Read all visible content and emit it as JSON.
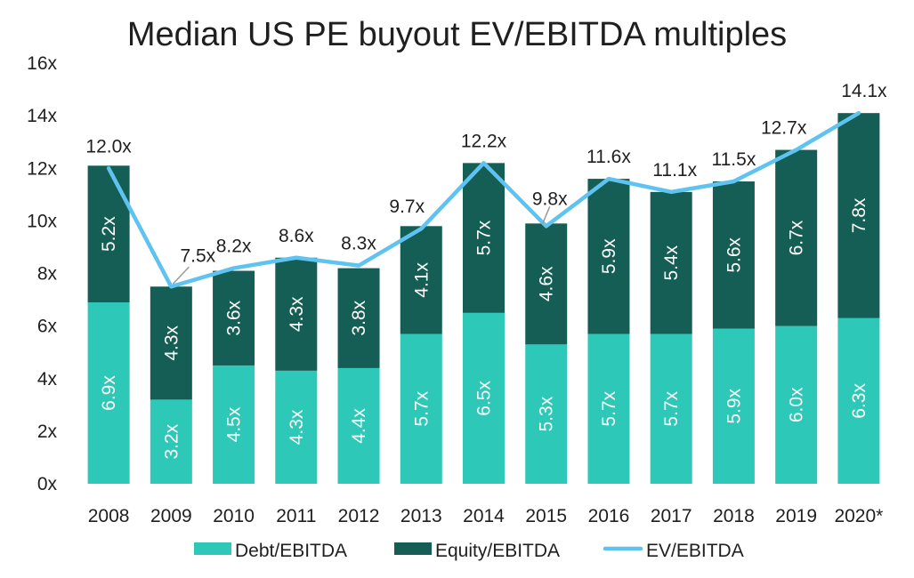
{
  "chart_data": {
    "type": "bar",
    "stacked": true,
    "title": "Median US PE buyout EV/EBITDA multiples",
    "categories": [
      "2008",
      "2009",
      "2010",
      "2011",
      "2012",
      "2013",
      "2014",
      "2015",
      "2016",
      "2017",
      "2018",
      "2019",
      "2020*"
    ],
    "series": [
      {
        "name": "Debt/EBITDA",
        "kind": "bar",
        "color": "#2ec8b8",
        "values": [
          6.9,
          3.2,
          4.5,
          4.3,
          4.4,
          5.7,
          6.5,
          5.3,
          5.7,
          5.7,
          5.9,
          6.0,
          6.3
        ],
        "labels": [
          "6.9x",
          "3.2x",
          "4.5x",
          "4.3x",
          "4.4x",
          "5.7x",
          "6.5x",
          "5.3x",
          "5.7x",
          "5.7x",
          "5.9x",
          "6.0x",
          "6.3x"
        ]
      },
      {
        "name": "Equity/EBITDA",
        "kind": "bar",
        "color": "#155e55",
        "values": [
          5.2,
          4.3,
          3.6,
          4.3,
          3.8,
          4.1,
          5.7,
          4.6,
          5.9,
          5.4,
          5.6,
          6.7,
          7.8
        ],
        "labels": [
          "5.2x",
          "4.3x",
          "3.6x",
          "4.3x",
          "3.8x",
          "4.1x",
          "5.7x",
          "4.6x",
          "5.9x",
          "5.4x",
          "5.6x",
          "6.7x",
          "7.8x"
        ]
      },
      {
        "name": "EV/EBITDA",
        "kind": "line",
        "color": "#5ec3f0",
        "values": [
          12.0,
          7.5,
          8.2,
          8.6,
          8.3,
          9.7,
          12.2,
          9.8,
          11.6,
          11.1,
          11.5,
          12.7,
          14.1
        ],
        "labels": [
          "12.0x",
          "7.5x",
          "8.2x",
          "8.6x",
          "8.3x",
          "9.7x",
          "12.2x",
          "9.8x",
          "11.6x",
          "11.1x",
          "11.5x",
          "12.7x",
          "14.1x"
        ]
      }
    ],
    "ylim": [
      0,
      16
    ],
    "yticks": [
      0,
      2,
      4,
      6,
      8,
      10,
      12,
      14,
      16
    ],
    "ytick_labels": [
      "0x",
      "2x",
      "4x",
      "6x",
      "8x",
      "10x",
      "12x",
      "14x",
      "16x"
    ],
    "xlabel": "",
    "ylabel": "",
    "grid": false,
    "legend_position": "bottom"
  }
}
